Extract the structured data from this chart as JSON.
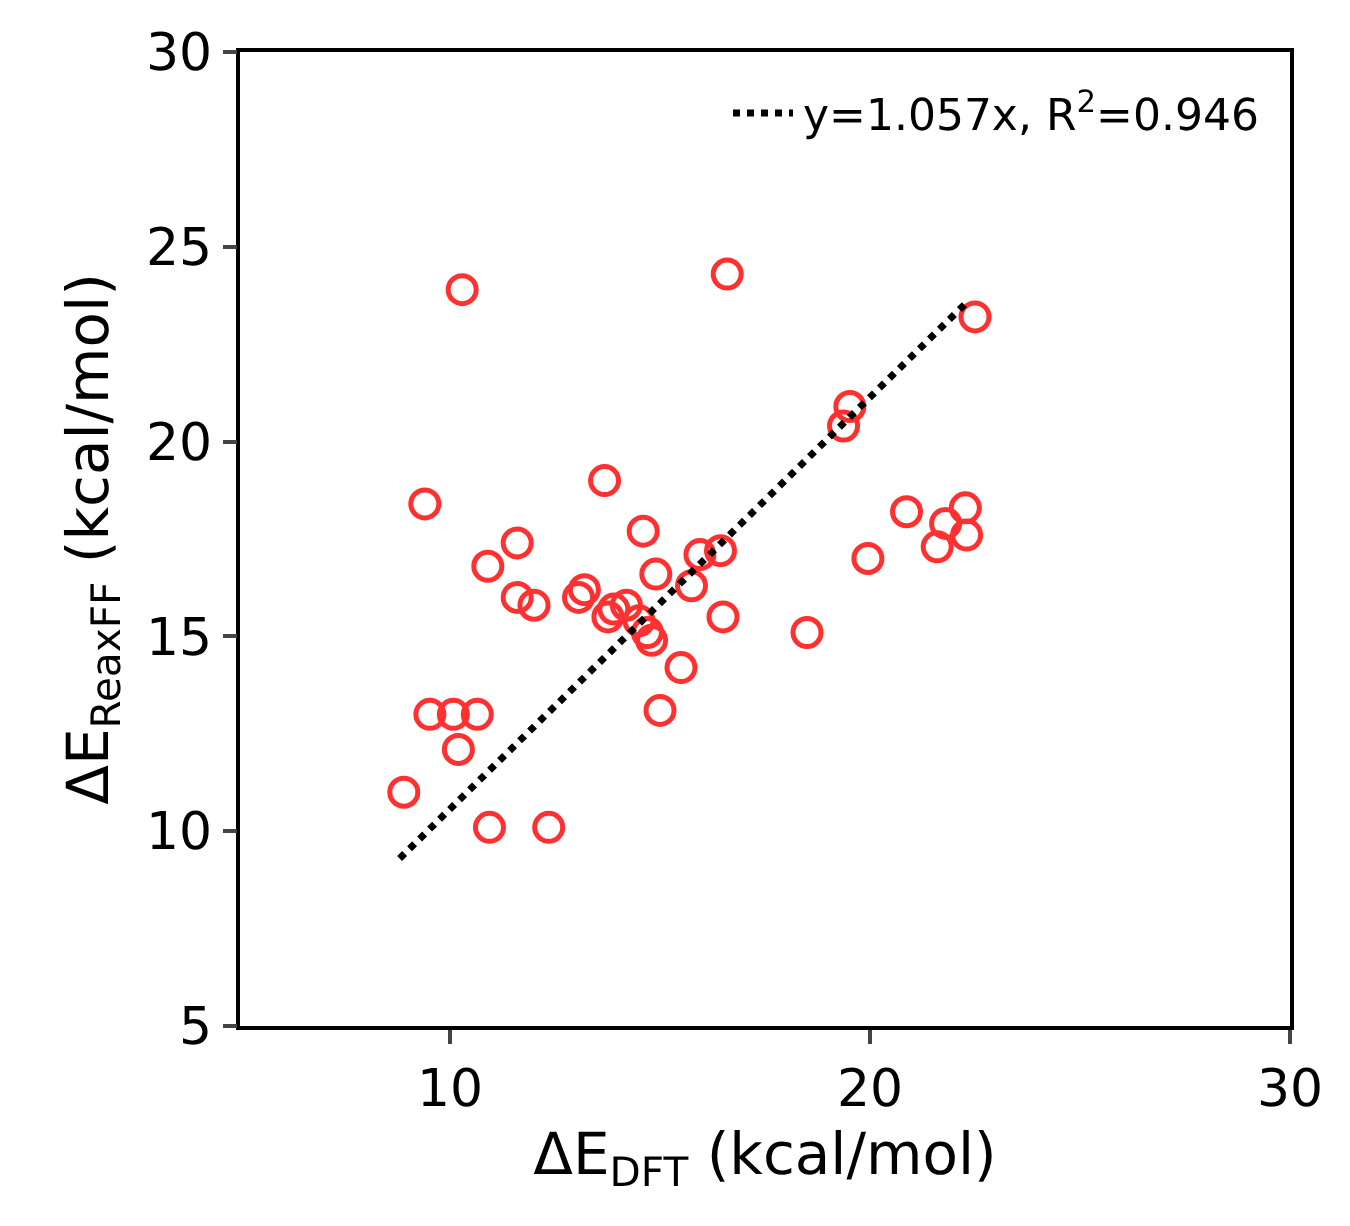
{
  "chart_data": {
    "type": "scatter",
    "xlabel": "ΔE$_{DFT}$ (kcal/mol)",
    "ylabel": "ΔE$_{ReaxFF}$ (kcal/mol)",
    "xlim": [
      5,
      30
    ],
    "xticks": [
      10,
      20,
      30
    ],
    "ylim": [
      5,
      30
    ],
    "yticks": [
      5,
      10,
      15,
      20,
      25,
      30
    ],
    "legend": "top right",
    "series": [
      {
        "color": "#ff3030",
        "marker": "circle",
        "x": [
          10.29,
          16.6,
          9.4,
          13.68,
          11.6,
          14.6,
          10.9,
          15.95,
          16.44,
          14.9,
          15.75,
          11.6,
          12.0,
          13.2,
          13.06,
          13.9,
          14.2,
          13.76,
          14.5,
          14.7,
          14.8,
          16.5,
          15.5,
          15.0,
          9.52,
          10.08,
          10.65,
          10.2,
          8.9,
          10.94,
          12.35,
          22.5,
          19.52,
          19.37,
          20.87,
          22.27,
          21.8,
          22.3,
          21.6,
          19.95,
          18.5
        ],
        "values": [
          23.9,
          24.3,
          18.4,
          19.0,
          17.4,
          17.7,
          16.8,
          17.1,
          17.2,
          16.6,
          16.3,
          16.0,
          15.8,
          16.2,
          16.0,
          15.7,
          15.8,
          15.5,
          15.4,
          15.1,
          14.9,
          15.5,
          14.2,
          13.1,
          13.0,
          13.0,
          13.0,
          12.1,
          11.0,
          10.1,
          10.1,
          23.2,
          20.9,
          20.4,
          18.2,
          18.3,
          17.9,
          17.6,
          17.3,
          17.0,
          15.1
        ]
      },
      {
        "type": "line",
        "name": "y=1.057x, R$^{2}$=0.946",
        "color": "#000000",
        "line_style": "dotted",
        "marker": "none",
        "x": [
          8.8,
          22.3
        ],
        "values": [
          9.3,
          23.57
        ]
      }
    ]
  }
}
